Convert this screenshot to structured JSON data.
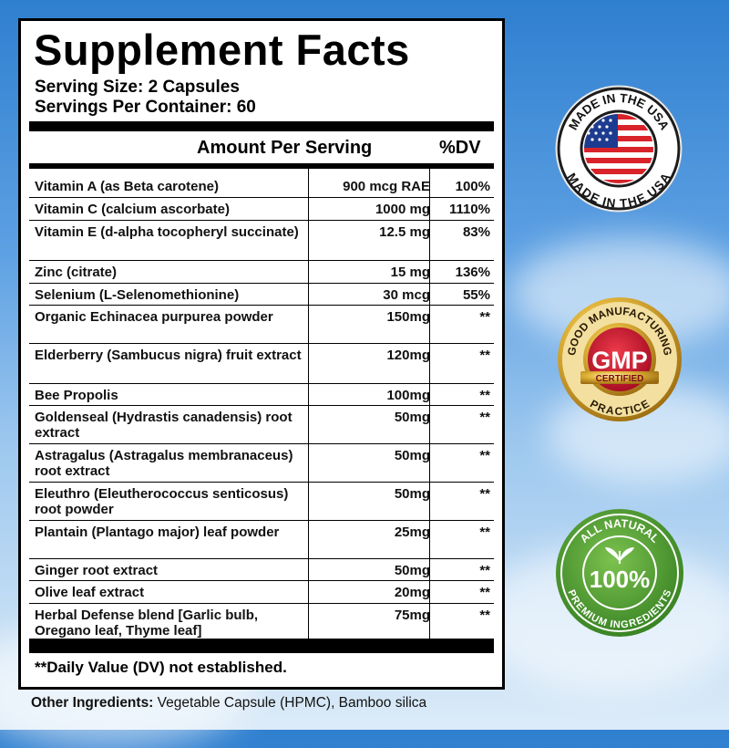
{
  "title": "Supplement Facts",
  "serving_size": "Serving Size: 2 Capsules",
  "servings_per_container": "Servings Per Container: 60",
  "header": {
    "amount": "Amount Per Serving",
    "dv": "%DV"
  },
  "nutrients": [
    {
      "name": "Vitamin A (as Beta carotene)",
      "amount": "900 mcg RAE",
      "dv": "100%"
    },
    {
      "name": "Vitamin C (calcium ascorbate)",
      "amount": "1000 mg",
      "dv": "1110%"
    },
    {
      "name": "Vitamin E (d-alpha tocopheryl succinate)",
      "amount": "12.5 mg",
      "dv": "83%"
    },
    {
      "name": "Zinc (citrate)",
      "amount": "15 mg",
      "dv": "136%"
    },
    {
      "name": "Selenium (L-Selenomethionine)",
      "amount": "30 mcg",
      "dv": "55%"
    },
    {
      "name": "Organic Echinacea purpurea powder",
      "amount": "150mg",
      "dv": "**"
    },
    {
      "name": "Elderberry (Sambucus nigra) fruit extract",
      "amount": "120mg",
      "dv": "**"
    },
    {
      "name": "Bee Propolis",
      "amount": "100mg",
      "dv": "**"
    },
    {
      "name": "Goldenseal (Hydrastis canadensis) root extract",
      "amount": "50mg",
      "dv": "**"
    },
    {
      "name": "Astragalus (Astragalus membranaceus) root extract",
      "amount": "50mg",
      "dv": "**"
    },
    {
      "name": "Eleuthro (Eleutherococcus senticosus) root powder",
      "amount": "50mg",
      "dv": "**"
    },
    {
      "name": "Plantain (Plantago major) leaf powder",
      "amount": "25mg",
      "dv": "**"
    },
    {
      "name": "Ginger root extract",
      "amount": "50mg",
      "dv": "**"
    },
    {
      "name": "Olive leaf extract",
      "amount": "20mg",
      "dv": "**"
    },
    {
      "name": "Herbal Defense blend [Garlic bulb, Oregano leaf, Thyme leaf]",
      "amount": "75mg",
      "dv": "**"
    }
  ],
  "footnote": "**Daily Value (DV) not established.",
  "other_ingredients": {
    "label": "Other Ingredients:",
    "text": " Vegetable Capsule (HPMC), Bamboo silica"
  },
  "badges": {
    "usa": {
      "top_text": "MADE IN THE USA",
      "bottom_text": "MADE IN THE USA"
    },
    "gmp": {
      "top_text": "GOOD MANUFACTURING",
      "center": "GMP",
      "certified": "CERTIFIED",
      "bottom_text": "PRACTICE"
    },
    "natural": {
      "top_text": "ALL NATURAL",
      "center": "100%",
      "bottom_text": "PREMIUM INGREDIENTS"
    }
  },
  "colors": {
    "usa_red": "#d8232a",
    "usa_blue": "#1d3b8f",
    "gmp_red": "#c8102e",
    "gmp_gold": "#d4a021",
    "natural_green": "#4a9a2c"
  }
}
